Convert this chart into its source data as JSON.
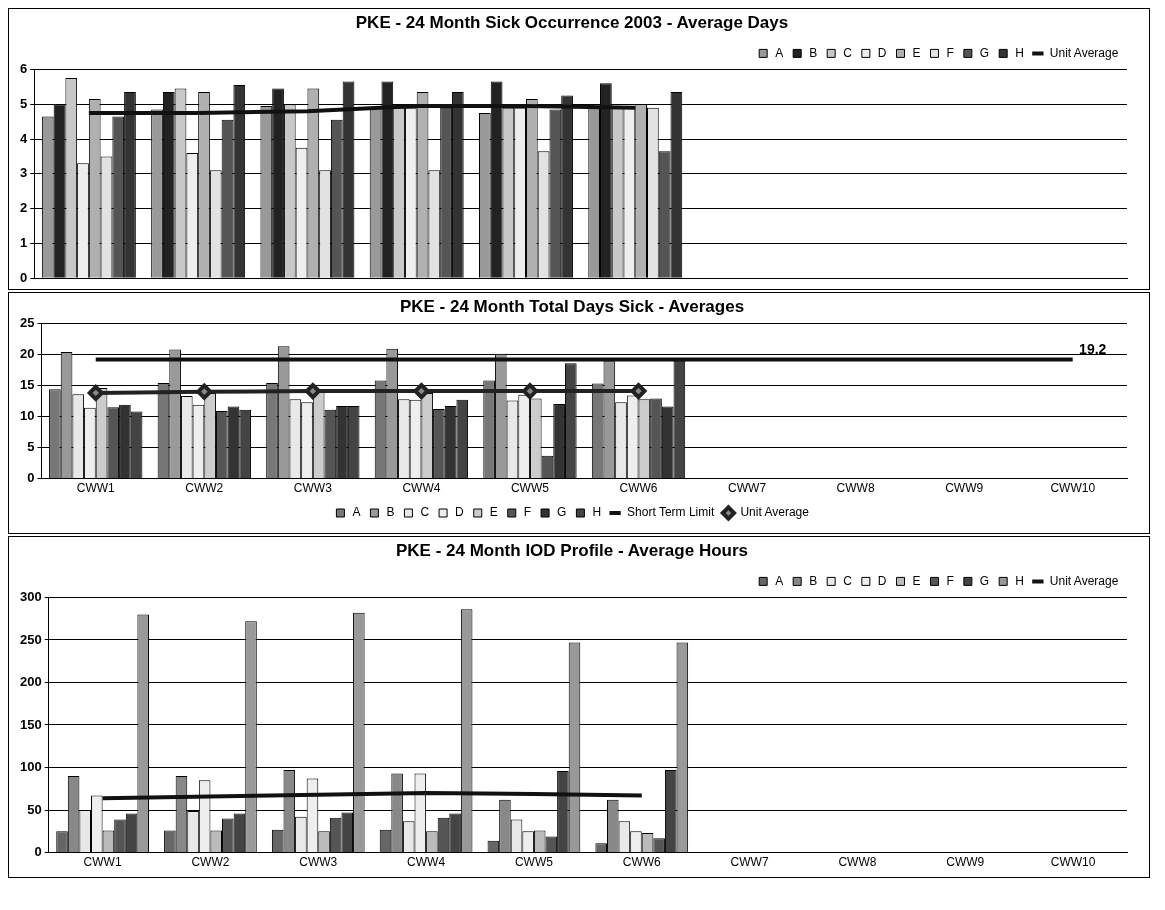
{
  "chart_data": [
    {
      "type": "bar",
      "title": "PKE - 24 Month Sick Occurrence 2003 - Average Days",
      "categories": [
        null,
        null,
        null,
        null,
        null,
        null,
        null,
        null,
        null,
        null
      ],
      "ylim": [
        0,
        6
      ],
      "yticks": [
        0,
        1,
        2,
        3,
        4,
        5,
        6
      ],
      "grid": "y",
      "legend": "top right",
      "tick_labels": "y",
      "series": [
        {
          "name": "A",
          "color": "#999999",
          "values": [
            4.65,
            4.85,
            4.95,
            4.9,
            4.75,
            4.9,
            null,
            null,
            null,
            null
          ]
        },
        {
          "name": "B",
          "color": "#222222",
          "values": [
            5.0,
            5.35,
            5.45,
            5.65,
            5.65,
            5.6,
            null,
            null,
            null,
            null
          ]
        },
        {
          "name": "C",
          "color": "#c8c8c8",
          "values": [
            5.75,
            5.45,
            5.0,
            4.9,
            4.9,
            4.9,
            null,
            null,
            null,
            null
          ]
        },
        {
          "name": "D",
          "color": "#eeeeee",
          "values": [
            3.3,
            3.6,
            3.75,
            4.9,
            4.9,
            4.9,
            null,
            null,
            null,
            null
          ]
        },
        {
          "name": "E",
          "color": "#b0b0b0",
          "values": [
            5.15,
            5.35,
            5.45,
            5.35,
            5.15,
            5.0,
            null,
            null,
            null,
            null
          ]
        },
        {
          "name": "F",
          "color": "#e2e2e2",
          "values": [
            3.5,
            3.1,
            3.1,
            3.1,
            3.65,
            4.9,
            null,
            null,
            null,
            null
          ]
        },
        {
          "name": "G",
          "color": "#555555",
          "values": [
            4.65,
            4.55,
            4.55,
            4.9,
            4.85,
            3.65,
            null,
            null,
            null,
            null
          ]
        },
        {
          "name": "H",
          "color": "#333333",
          "values": [
            5.35,
            5.55,
            5.65,
            5.35,
            5.25,
            5.35,
            null,
            null,
            null,
            null
          ]
        },
        {
          "name": "Unit Average",
          "type": "line",
          "color": "#111111",
          "marker": "none",
          "values": [
            4.75,
            4.75,
            4.8,
            4.95,
            4.95,
            4.9,
            null,
            null,
            null,
            null
          ]
        }
      ]
    },
    {
      "type": "bar",
      "title": "PKE - 24 Month Total Days Sick - Averages",
      "categories": [
        "CWW1",
        "CWW2",
        "CWW3",
        "CWW4",
        "CWW5",
        "CWW6",
        "CWW7",
        "CWW8",
        "CWW9",
        "CWW10"
      ],
      "ylim": [
        0,
        25
      ],
      "yticks": [
        0,
        5,
        10,
        15,
        20,
        25
      ],
      "grid": "y",
      "legend": "bottom",
      "series": [
        {
          "name": "A",
          "color": "#777777",
          "values": [
            14.4,
            15.4,
            15.4,
            15.8,
            15.8,
            15.3,
            null,
            null,
            null,
            null
          ]
        },
        {
          "name": "B",
          "color": "#999999",
          "values": [
            20.4,
            20.8,
            21.3,
            20.9,
            20.1,
            18.9,
            null,
            null,
            null,
            null
          ]
        },
        {
          "name": "C",
          "color": "#e8e8e8",
          "values": [
            13.6,
            13.3,
            12.8,
            12.8,
            12.6,
            12.3,
            null,
            null,
            null,
            null
          ]
        },
        {
          "name": "D",
          "color": "#eeeeee",
          "values": [
            11.4,
            11.9,
            12.3,
            12.7,
            13.5,
            13.4,
            null,
            null,
            null,
            null
          ]
        },
        {
          "name": "E",
          "color": "#cccccc",
          "values": [
            14.6,
            13.8,
            14.0,
            13.8,
            12.9,
            12.8,
            null,
            null,
            null,
            null
          ]
        },
        {
          "name": "F",
          "color": "#555555",
          "values": [
            11.5,
            10.9,
            11.1,
            11.2,
            3.7,
            12.9,
            null,
            null,
            null,
            null
          ]
        },
        {
          "name": "G",
          "color": "#333333",
          "values": [
            11.9,
            11.6,
            11.7,
            11.7,
            12.0,
            11.6,
            null,
            null,
            null,
            null
          ]
        },
        {
          "name": "H",
          "color": "#444444",
          "values": [
            10.8,
            11.1,
            11.7,
            12.7,
            18.6,
            19.0,
            null,
            null,
            null,
            null
          ]
        },
        {
          "name": "Short Term Limit",
          "type": "line",
          "color": "#111111",
          "marker": "none",
          "values": [
            19.2,
            19.2,
            19.2,
            19.2,
            19.2,
            19.2,
            19.2,
            19.2,
            19.2,
            19.2
          ],
          "value_labels": [
            null,
            null,
            null,
            null,
            null,
            null,
            null,
            null,
            null,
            "19.2"
          ]
        },
        {
          "name": "Unit Average",
          "type": "line",
          "color": "#222222",
          "marker": "diamond",
          "values": [
            13.8,
            14.0,
            14.1,
            14.1,
            14.1,
            14.1,
            null,
            null,
            null,
            null
          ]
        }
      ]
    },
    {
      "type": "bar",
      "title": "PKE - 24 Month IOD Profile - Average Hours",
      "categories": [
        "CWW1",
        "CWW2",
        "CWW3",
        "CWW4",
        "CWW5",
        "CWW6",
        "CWW7",
        "CWW8",
        "CWW9",
        "CWW10"
      ],
      "ylim": [
        0,
        300
      ],
      "yticks": [
        0,
        50,
        100,
        150,
        200,
        250,
        300
      ],
      "grid": "y",
      "legend": "top right",
      "series": [
        {
          "name": "A",
          "color": "#666666",
          "values": [
            25,
            26,
            27,
            27,
            14,
            11,
            null,
            null,
            null,
            null
          ]
        },
        {
          "name": "B",
          "color": "#888888",
          "values": [
            90,
            90,
            97,
            93,
            62,
            62,
            null,
            null,
            null,
            null
          ]
        },
        {
          "name": "C",
          "color": "#e8e8e8",
          "values": [
            50,
            49,
            42,
            37,
            39,
            37,
            null,
            null,
            null,
            null
          ]
        },
        {
          "name": "D",
          "color": "#eeeeee",
          "values": [
            67,
            85,
            87,
            93,
            25,
            25,
            null,
            null,
            null,
            null
          ]
        },
        {
          "name": "E",
          "color": "#bbbbbb",
          "values": [
            26,
            26,
            25,
            25,
            26,
            23,
            null,
            null,
            null,
            null
          ]
        },
        {
          "name": "F",
          "color": "#555555",
          "values": [
            39,
            40,
            41,
            41,
            19,
            17,
            null,
            null,
            null,
            null
          ]
        },
        {
          "name": "G",
          "color": "#444444",
          "values": [
            46,
            46,
            47,
            46,
            96,
            97,
            null,
            null,
            null,
            null
          ]
        },
        {
          "name": "H",
          "color": "#999999",
          "values": [
            280,
            272,
            282,
            286,
            247,
            247,
            null,
            null,
            null,
            null
          ]
        },
        {
          "name": "Unit Average",
          "type": "line",
          "color": "#111111",
          "marker": "none",
          "values": [
            64,
            66,
            68,
            70,
            69,
            67,
            null,
            null,
            null,
            null
          ]
        }
      ]
    }
  ]
}
